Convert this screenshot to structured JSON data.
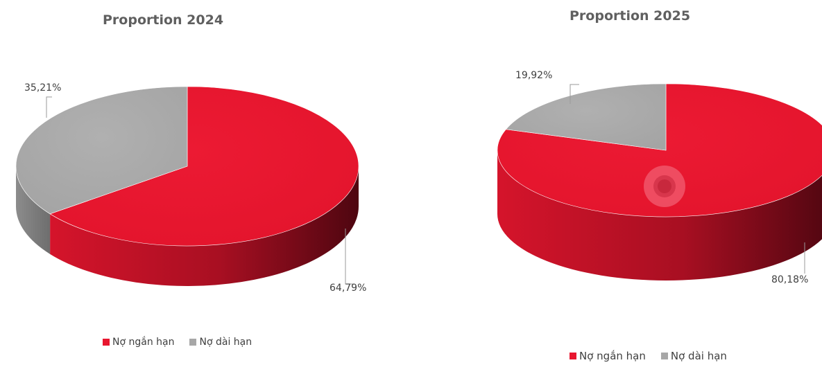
{
  "chart_data": [
    {
      "type": "pie",
      "title": "Proportion 2024",
      "categories": [
        "Nợ ngắn hạn",
        "Nợ dài hạn"
      ],
      "values": [
        64.79,
        35.21
      ],
      "labels": [
        "64,79%",
        "35,21%"
      ],
      "colors": [
        "#e8162f",
        "#a7a7a7"
      ],
      "legend": "bottom"
    },
    {
      "type": "pie",
      "title": "Proportion 2025",
      "categories": [
        "Nợ ngắn hạn",
        "Nợ dài hạn"
      ],
      "values": [
        80.18,
        19.92
      ],
      "labels": [
        "80,18%",
        "19,92%"
      ],
      "colors": [
        "#e8162f",
        "#a7a7a7"
      ],
      "legend": "bottom"
    }
  ]
}
